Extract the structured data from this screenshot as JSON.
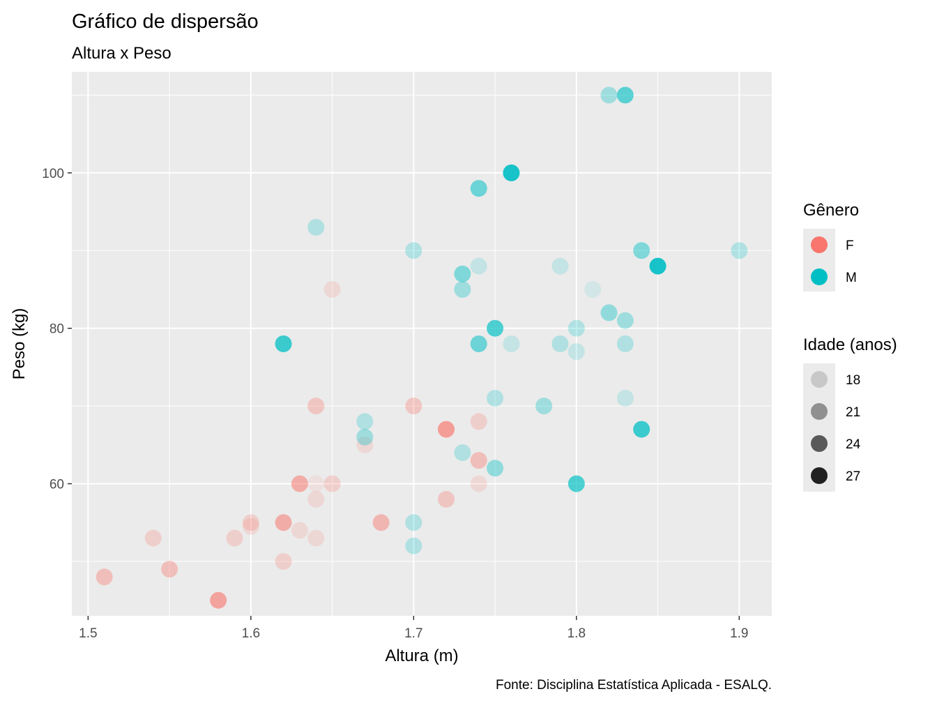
{
  "chart_data": {
    "type": "scatter",
    "title": "Gráfico de dispersão",
    "subtitle": "Altura x Peso",
    "xlabel": "Altura (m)",
    "ylabel": "Peso (kg)",
    "caption": "Fonte: Disciplina Estatística Aplicada - ESALQ.",
    "xlim": [
      1.49,
      1.92
    ],
    "ylim": [
      43,
      113
    ],
    "x_ticks": [
      "1.5",
      "1.6",
      "1.7",
      "1.8",
      "1.9"
    ],
    "y_ticks": [
      "60",
      "80",
      "100"
    ],
    "grid": true,
    "background": "#ebebeb",
    "legend": {
      "placement": "right",
      "color": {
        "title": "Gênero",
        "entries": [
          {
            "label": "F",
            "color": "#f8766d"
          },
          {
            "label": "M",
            "color": "#00bfc4"
          }
        ]
      },
      "alpha": {
        "title": "Idade (anos)",
        "entries": [
          {
            "label": "18",
            "value": 18
          },
          {
            "label": "21",
            "value": 21
          },
          {
            "label": "24",
            "value": 24
          },
          {
            "label": "27",
            "value": 27
          }
        ]
      }
    },
    "series": [
      {
        "name": "F",
        "points": [
          {
            "x": 1.51,
            "y": 48,
            "age": 21
          },
          {
            "x": 1.54,
            "y": 53,
            "age": 19
          },
          {
            "x": 1.55,
            "y": 49,
            "age": 21
          },
          {
            "x": 1.58,
            "y": 45,
            "age": 24
          },
          {
            "x": 1.59,
            "y": 53,
            "age": 19
          },
          {
            "x": 1.6,
            "y": 55,
            "age": 19
          },
          {
            "x": 1.6,
            "y": 54.5,
            "age": 18
          },
          {
            "x": 1.62,
            "y": 55,
            "age": 23
          },
          {
            "x": 1.62,
            "y": 50,
            "age": 19
          },
          {
            "x": 1.63,
            "y": 60,
            "age": 23
          },
          {
            "x": 1.63,
            "y": 54,
            "age": 18
          },
          {
            "x": 1.64,
            "y": 70,
            "age": 20
          },
          {
            "x": 1.64,
            "y": 60,
            "age": 17
          },
          {
            "x": 1.64,
            "y": 58,
            "age": 18
          },
          {
            "x": 1.64,
            "y": 53,
            "age": 18
          },
          {
            "x": 1.65,
            "y": 85,
            "age": 18
          },
          {
            "x": 1.65,
            "y": 60,
            "age": 19
          },
          {
            "x": 1.67,
            "y": 65,
            "age": 18
          },
          {
            "x": 1.68,
            "y": 55,
            "age": 22
          },
          {
            "x": 1.7,
            "y": 70,
            "age": 20
          },
          {
            "x": 1.72,
            "y": 67,
            "age": 25
          },
          {
            "x": 1.72,
            "y": 58,
            "age": 20
          },
          {
            "x": 1.74,
            "y": 68,
            "age": 19
          },
          {
            "x": 1.74,
            "y": 63,
            "age": 21
          },
          {
            "x": 1.74,
            "y": 60,
            "age": 18
          }
        ]
      },
      {
        "name": "M",
        "points": [
          {
            "x": 1.62,
            "y": 78,
            "age": 26
          },
          {
            "x": 1.64,
            "y": 93,
            "age": 19
          },
          {
            "x": 1.67,
            "y": 68,
            "age": 19
          },
          {
            "x": 1.67,
            "y": 66,
            "age": 20
          },
          {
            "x": 1.7,
            "y": 90,
            "age": 19
          },
          {
            "x": 1.7,
            "y": 55,
            "age": 19
          },
          {
            "x": 1.7,
            "y": 52,
            "age": 19
          },
          {
            "x": 1.73,
            "y": 87,
            "age": 22
          },
          {
            "x": 1.73,
            "y": 85,
            "age": 20
          },
          {
            "x": 1.73,
            "y": 64,
            "age": 19
          },
          {
            "x": 1.74,
            "y": 98,
            "age": 23
          },
          {
            "x": 1.74,
            "y": 88,
            "age": 18
          },
          {
            "x": 1.74,
            "y": 78,
            "age": 23
          },
          {
            "x": 1.75,
            "y": 80,
            "age": 25
          },
          {
            "x": 1.75,
            "y": 71,
            "age": 19
          },
          {
            "x": 1.75,
            "y": 62,
            "age": 21
          },
          {
            "x": 1.76,
            "y": 100,
            "age": 28
          },
          {
            "x": 1.76,
            "y": 78,
            "age": 18
          },
          {
            "x": 1.78,
            "y": 70,
            "age": 20
          },
          {
            "x": 1.79,
            "y": 88,
            "age": 18
          },
          {
            "x": 1.79,
            "y": 78,
            "age": 19
          },
          {
            "x": 1.8,
            "y": 80,
            "age": 19
          },
          {
            "x": 1.8,
            "y": 77,
            "age": 18
          },
          {
            "x": 1.8,
            "y": 60,
            "age": 25
          },
          {
            "x": 1.81,
            "y": 85,
            "age": 17
          },
          {
            "x": 1.82,
            "y": 110,
            "age": 20
          },
          {
            "x": 1.82,
            "y": 82,
            "age": 21
          },
          {
            "x": 1.83,
            "y": 110,
            "age": 24
          },
          {
            "x": 1.83,
            "y": 81,
            "age": 20
          },
          {
            "x": 1.83,
            "y": 78,
            "age": 19
          },
          {
            "x": 1.83,
            "y": 71,
            "age": 18
          },
          {
            "x": 1.84,
            "y": 90,
            "age": 22
          },
          {
            "x": 1.84,
            "y": 67,
            "age": 26
          },
          {
            "x": 1.85,
            "y": 88,
            "age": 28
          },
          {
            "x": 1.9,
            "y": 90,
            "age": 19
          }
        ]
      }
    ]
  }
}
